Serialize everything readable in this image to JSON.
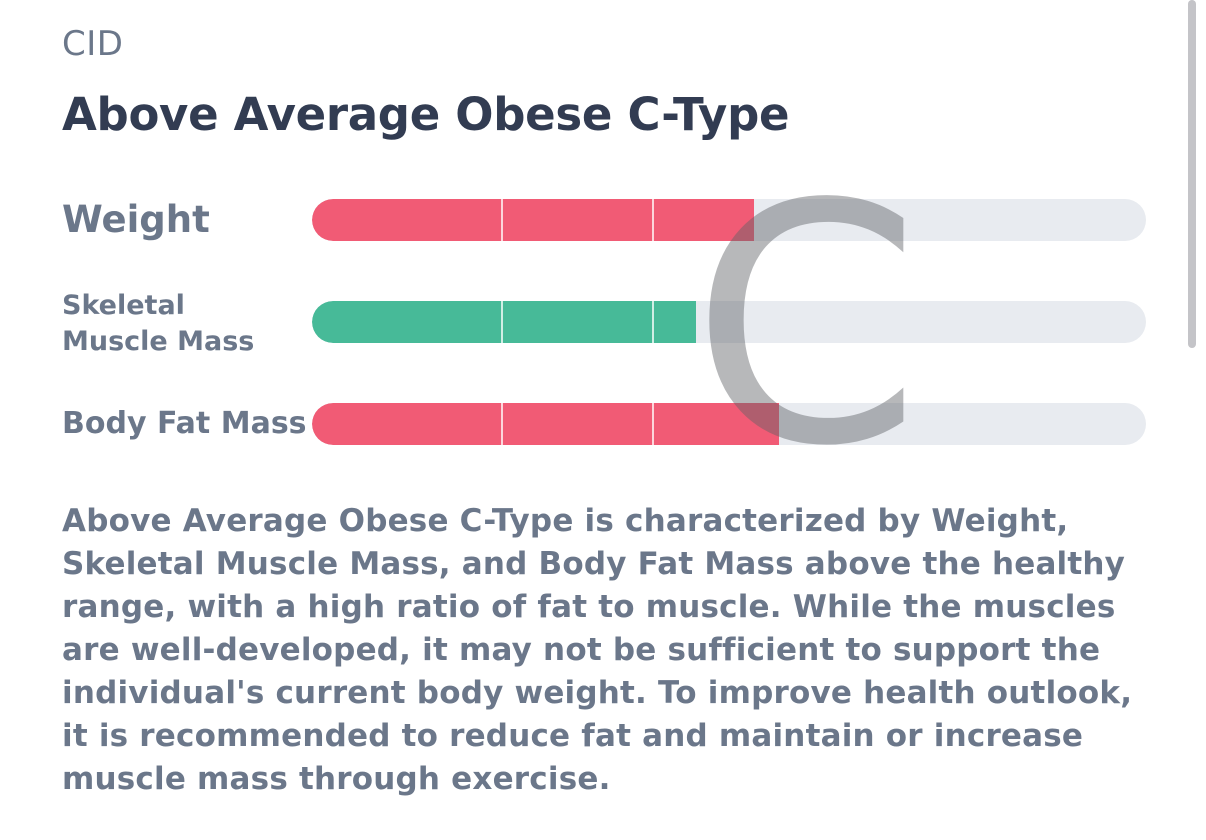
{
  "header": {
    "section_label": "CID",
    "title": "Above Average Obese C-Type"
  },
  "type_letter": "C",
  "rows": [
    {
      "label": "Weight",
      "level": 0.53,
      "color": "#f15b75"
    },
    {
      "label": "Skeletal Muscle Mass",
      "label_line1": "Skeletal",
      "label_line2": "Muscle Mass",
      "level": 0.46,
      "color": "#47ba98"
    },
    {
      "label": "Body Fat Mass",
      "level": 0.56,
      "color": "#f15b75"
    }
  ],
  "description": "Above Average Obese C-Type is characterized by Weight, Skeletal Muscle Mass, and Body Fat Mass above the healthy range, with a high ratio of fat to muscle. While the muscles are well-developed, it may not be sufficient to support the individual's current body weight. To improve health outlook, it is recommended to reduce fat and maintain or increase muscle mass through exercise."
}
